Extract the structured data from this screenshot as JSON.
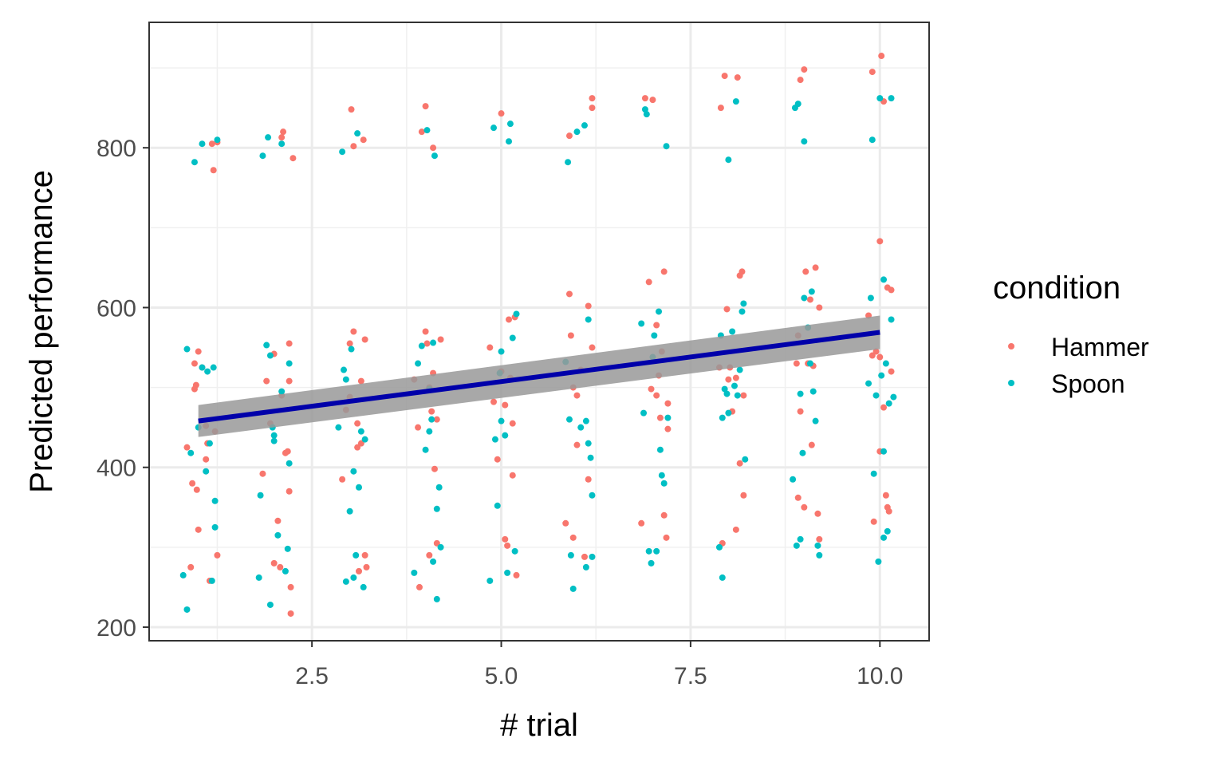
{
  "chart_data": {
    "type": "scatter",
    "title": "",
    "xlabel": "# trial",
    "ylabel": "Predicted performance",
    "xlim": [
      0.35,
      10.65
    ],
    "ylim": [
      183,
      957
    ],
    "x_ticks": [
      2.5,
      5.0,
      7.5,
      10.0
    ],
    "x_tick_labels": [
      "2.5",
      "5.0",
      "7.5",
      "10.0"
    ],
    "y_ticks": [
      200,
      400,
      600,
      800
    ],
    "y_tick_labels": [
      "200",
      "400",
      "600",
      "800"
    ],
    "grid": true,
    "legend": {
      "title": "condition",
      "placement": "right"
    },
    "trend": {
      "type": "linear-fit",
      "color": "#0000aa",
      "ci_color": "#999999",
      "x": [
        1,
        10
      ],
      "y": [
        458,
        569
      ],
      "ci_lower": [
        438,
        548
      ],
      "ci_upper": [
        478,
        590
      ]
    },
    "series": [
      {
        "name": "Hammer",
        "color": "#f8766d",
        "points": [
          [
            0.85,
            425
          ],
          [
            0.9,
            275
          ],
          [
            0.92,
            380
          ],
          [
            0.95,
            530
          ],
          [
            0.97,
            503
          ],
          [
            1.0,
            545
          ],
          [
            1.0,
            322
          ],
          [
            1.05,
            525
          ],
          [
            1.1,
            452
          ],
          [
            1.1,
            410
          ],
          [
            1.12,
            430
          ],
          [
            1.15,
            258
          ],
          [
            1.18,
            805
          ],
          [
            1.2,
            772
          ],
          [
            1.22,
            445
          ],
          [
            1.25,
            290
          ],
          [
            1.25,
            807
          ],
          [
            0.95,
            498
          ],
          [
            0.98,
            372
          ],
          [
            1.85,
            392
          ],
          [
            1.9,
            508
          ],
          [
            1.95,
            455
          ],
          [
            2.0,
            280
          ],
          [
            2.0,
            542
          ],
          [
            2.05,
            333
          ],
          [
            2.1,
            490
          ],
          [
            2.12,
            820
          ],
          [
            2.15,
            418
          ],
          [
            2.18,
            420
          ],
          [
            2.2,
            555
          ],
          [
            2.2,
            370
          ],
          [
            2.2,
            508
          ],
          [
            2.22,
            250
          ],
          [
            2.22,
            217
          ],
          [
            2.25,
            787
          ],
          [
            2.08,
            275
          ],
          [
            2.1,
            813
          ],
          [
            2.9,
            385
          ],
          [
            2.95,
            472
          ],
          [
            3.0,
            555
          ],
          [
            3.02,
            848
          ],
          [
            3.05,
            570
          ],
          [
            3.05,
            802
          ],
          [
            3.1,
            455
          ],
          [
            3.12,
            270
          ],
          [
            3.15,
            508
          ],
          [
            3.15,
            430
          ],
          [
            3.18,
            810
          ],
          [
            3.2,
            560
          ],
          [
            3.2,
            290
          ],
          [
            3.22,
            275
          ],
          [
            3.1,
            425
          ],
          [
            3.0,
            488
          ],
          [
            3.85,
            510
          ],
          [
            3.9,
            450
          ],
          [
            3.92,
            250
          ],
          [
            3.95,
            820
          ],
          [
            4.0,
            852
          ],
          [
            4.0,
            570
          ],
          [
            4.02,
            555
          ],
          [
            4.05,
            290
          ],
          [
            4.08,
            470
          ],
          [
            4.1,
            800
          ],
          [
            4.1,
            518
          ],
          [
            4.12,
            398
          ],
          [
            4.15,
            305
          ],
          [
            4.15,
            460
          ],
          [
            4.2,
            560
          ],
          [
            4.05,
            500
          ],
          [
            4.85,
            550
          ],
          [
            4.9,
            482
          ],
          [
            4.95,
            410
          ],
          [
            5.0,
            843
          ],
          [
            5.0,
            520
          ],
          [
            5.05,
            310
          ],
          [
            5.08,
            302
          ],
          [
            5.1,
            585
          ],
          [
            5.12,
            512
          ],
          [
            5.15,
            455
          ],
          [
            5.15,
            390
          ],
          [
            5.18,
            588
          ],
          [
            5.2,
            265
          ],
          [
            5.05,
            478
          ],
          [
            5.85,
            330
          ],
          [
            5.9,
            617
          ],
          [
            5.9,
            815
          ],
          [
            5.92,
            565
          ],
          [
            5.95,
            500
          ],
          [
            6.0,
            428
          ],
          [
            6.0,
            490
          ],
          [
            6.05,
            522
          ],
          [
            6.1,
            288
          ],
          [
            6.15,
            602
          ],
          [
            6.15,
            385
          ],
          [
            6.2,
            862
          ],
          [
            6.2,
            850
          ],
          [
            6.2,
            550
          ],
          [
            5.95,
            312
          ],
          [
            6.85,
            330
          ],
          [
            6.9,
            862
          ],
          [
            6.95,
            632
          ],
          [
            6.98,
            498
          ],
          [
            7.0,
            860
          ],
          [
            7.05,
            490
          ],
          [
            7.08,
            515
          ],
          [
            7.1,
            462
          ],
          [
            7.12,
            545
          ],
          [
            7.15,
            645
          ],
          [
            7.15,
            340
          ],
          [
            7.18,
            312
          ],
          [
            7.2,
            448
          ],
          [
            7.2,
            480
          ],
          [
            7.05,
            578
          ],
          [
            7.88,
            525
          ],
          [
            7.9,
            850
          ],
          [
            7.92,
            305
          ],
          [
            7.95,
            890
          ],
          [
            7.98,
            598
          ],
          [
            8.0,
            510
          ],
          [
            8.02,
            525
          ],
          [
            8.05,
            470
          ],
          [
            8.1,
            512
          ],
          [
            8.12,
            888
          ],
          [
            8.15,
            640
          ],
          [
            8.15,
            405
          ],
          [
            8.18,
            645
          ],
          [
            8.2,
            490
          ],
          [
            8.2,
            365
          ],
          [
            8.1,
            322
          ],
          [
            8.9,
            530
          ],
          [
            8.92,
            565
          ],
          [
            8.95,
            470
          ],
          [
            8.95,
            885
          ],
          [
            9.0,
            898
          ],
          [
            9.02,
            645
          ],
          [
            9.05,
            530
          ],
          [
            9.08,
            610
          ],
          [
            9.1,
            428
          ],
          [
            9.12,
            527
          ],
          [
            9.15,
            650
          ],
          [
            9.18,
            342
          ],
          [
            9.2,
            310
          ],
          [
            9.2,
            600
          ],
          [
            9.0,
            350
          ],
          [
            8.92,
            362
          ],
          [
            9.85,
            590
          ],
          [
            9.9,
            540
          ],
          [
            9.9,
            895
          ],
          [
            9.92,
            332
          ],
          [
            9.95,
            545
          ],
          [
            10.0,
            683
          ],
          [
            10.0,
            538
          ],
          [
            10.02,
            915
          ],
          [
            10.05,
            475
          ],
          [
            10.05,
            858
          ],
          [
            10.08,
            365
          ],
          [
            10.1,
            625
          ],
          [
            10.1,
            350
          ],
          [
            10.12,
            345
          ],
          [
            10.15,
            520
          ],
          [
            10.15,
            622
          ],
          [
            10.0,
            420
          ]
        ]
      },
      {
        "name": "Spoon",
        "color": "#00bfc4",
        "points": [
          [
            0.8,
            265
          ],
          [
            0.85,
            548
          ],
          [
            0.85,
            222
          ],
          [
            0.9,
            418
          ],
          [
            0.95,
            782
          ],
          [
            1.0,
            450
          ],
          [
            1.05,
            525
          ],
          [
            1.05,
            805
          ],
          [
            1.1,
            395
          ],
          [
            1.12,
            520
          ],
          [
            1.15,
            430
          ],
          [
            1.18,
            258
          ],
          [
            1.2,
            525
          ],
          [
            1.22,
            358
          ],
          [
            1.22,
            325
          ],
          [
            1.25,
            810
          ],
          [
            1.8,
            262
          ],
          [
            1.82,
            365
          ],
          [
            1.85,
            790
          ],
          [
            1.9,
            553
          ],
          [
            1.92,
            813
          ],
          [
            1.95,
            540
          ],
          [
            1.95,
            228
          ],
          [
            2.0,
            440
          ],
          [
            2.0,
            433
          ],
          [
            2.05,
            315
          ],
          [
            2.1,
            495
          ],
          [
            2.1,
            805
          ],
          [
            2.15,
            270
          ],
          [
            2.18,
            298
          ],
          [
            2.2,
            530
          ],
          [
            2.2,
            405
          ],
          [
            1.98,
            450
          ],
          [
            2.85,
            450
          ],
          [
            2.9,
            795
          ],
          [
            2.92,
            522
          ],
          [
            2.95,
            510
          ],
          [
            2.95,
            257
          ],
          [
            3.0,
            345
          ],
          [
            3.02,
            548
          ],
          [
            3.05,
            395
          ],
          [
            3.08,
            290
          ],
          [
            3.1,
            818
          ],
          [
            3.12,
            375
          ],
          [
            3.15,
            445
          ],
          [
            3.18,
            250
          ],
          [
            3.2,
            435
          ],
          [
            3.05,
            262
          ],
          [
            3.85,
            268
          ],
          [
            3.9,
            530
          ],
          [
            3.95,
            552
          ],
          [
            4.0,
            422
          ],
          [
            4.02,
            822
          ],
          [
            4.05,
            498
          ],
          [
            4.08,
            460
          ],
          [
            4.1,
            556
          ],
          [
            4.12,
            790
          ],
          [
            4.15,
            235
          ],
          [
            4.15,
            348
          ],
          [
            4.18,
            375
          ],
          [
            4.2,
            300
          ],
          [
            4.1,
            282
          ],
          [
            4.05,
            445
          ],
          [
            4.85,
            258
          ],
          [
            4.9,
            825
          ],
          [
            4.92,
            435
          ],
          [
            4.95,
            352
          ],
          [
            4.98,
            518
          ],
          [
            5.0,
            458
          ],
          [
            5.0,
            545
          ],
          [
            5.05,
            440
          ],
          [
            5.08,
            268
          ],
          [
            5.1,
            808
          ],
          [
            5.12,
            830
          ],
          [
            5.15,
            562
          ],
          [
            5.18,
            295
          ],
          [
            5.2,
            592
          ],
          [
            5.85,
            532
          ],
          [
            5.88,
            782
          ],
          [
            5.9,
            460
          ],
          [
            5.92,
            290
          ],
          [
            5.95,
            248
          ],
          [
            6.0,
            820
          ],
          [
            6.05,
            450
          ],
          [
            6.1,
            828
          ],
          [
            6.12,
            458
          ],
          [
            6.15,
            585
          ],
          [
            6.15,
            430
          ],
          [
            6.18,
            412
          ],
          [
            6.2,
            288
          ],
          [
            6.2,
            365
          ],
          [
            6.12,
            275
          ],
          [
            6.85,
            580
          ],
          [
            6.88,
            468
          ],
          [
            6.9,
            848
          ],
          [
            6.92,
            842
          ],
          [
            6.95,
            295
          ],
          [
            6.98,
            280
          ],
          [
            7.0,
            538
          ],
          [
            7.02,
            565
          ],
          [
            7.05,
            295
          ],
          [
            7.08,
            595
          ],
          [
            7.1,
            422
          ],
          [
            7.12,
            390
          ],
          [
            7.15,
            380
          ],
          [
            7.18,
            802
          ],
          [
            7.2,
            462
          ],
          [
            7.88,
            300
          ],
          [
            7.9,
            565
          ],
          [
            7.92,
            462
          ],
          [
            7.95,
            498
          ],
          [
            7.98,
            492
          ],
          [
            8.0,
            785
          ],
          [
            8.0,
            468
          ],
          [
            8.05,
            570
          ],
          [
            8.08,
            502
          ],
          [
            8.1,
            858
          ],
          [
            8.12,
            490
          ],
          [
            8.15,
            522
          ],
          [
            8.18,
            595
          ],
          [
            8.2,
            605
          ],
          [
            8.22,
            410
          ],
          [
            7.92,
            262
          ],
          [
            8.85,
            385
          ],
          [
            8.88,
            850
          ],
          [
            8.9,
            302
          ],
          [
            8.92,
            855
          ],
          [
            8.95,
            492
          ],
          [
            8.98,
            418
          ],
          [
            9.0,
            612
          ],
          [
            9.0,
            808
          ],
          [
            9.05,
            575
          ],
          [
            9.08,
            530
          ],
          [
            9.1,
            620
          ],
          [
            9.12,
            495
          ],
          [
            9.15,
            458
          ],
          [
            9.18,
            302
          ],
          [
            9.2,
            290
          ],
          [
            8.95,
            310
          ],
          [
            9.85,
            505
          ],
          [
            9.88,
            612
          ],
          [
            9.9,
            810
          ],
          [
            9.92,
            392
          ],
          [
            9.95,
            490
          ],
          [
            9.98,
            282
          ],
          [
            10.0,
            862
          ],
          [
            10.02,
            515
          ],
          [
            10.05,
            312
          ],
          [
            10.05,
            635
          ],
          [
            10.08,
            530
          ],
          [
            10.1,
            320
          ],
          [
            10.12,
            480
          ],
          [
            10.15,
            862
          ],
          [
            10.15,
            585
          ],
          [
            10.18,
            488
          ],
          [
            10.05,
            420
          ]
        ]
      }
    ]
  }
}
